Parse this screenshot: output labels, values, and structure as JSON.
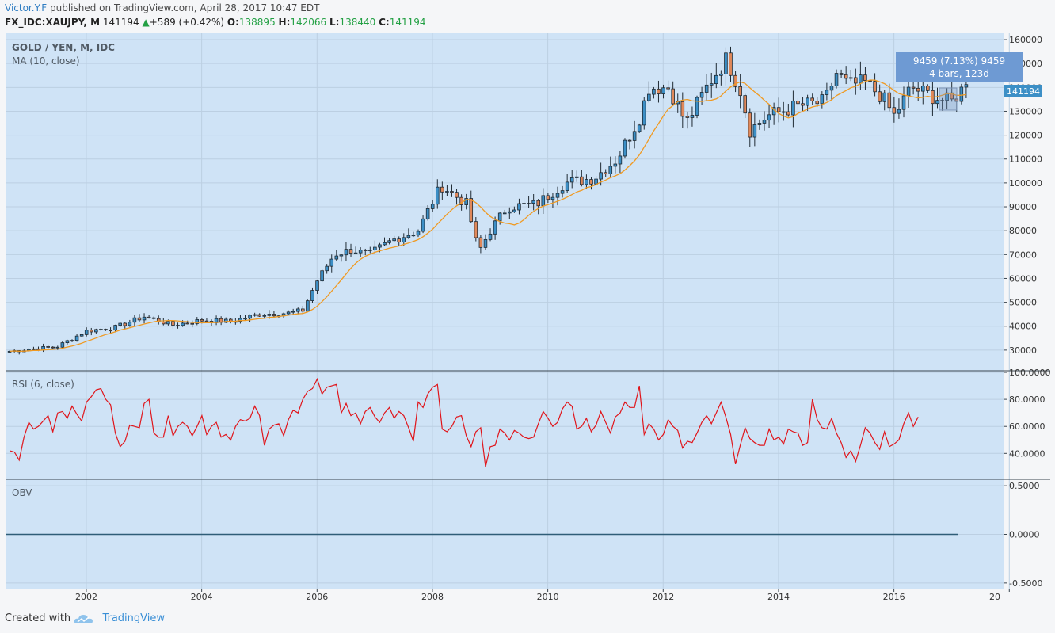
{
  "header": {
    "author": "Victor.Y.F",
    "published_text": " published on TradingView.com, April 28, 2017 10:47 EDT"
  },
  "quote": {
    "symbol": "FX_IDC:XAUJPY, M",
    "last": "141194",
    "change": "+589 (+0.42%)",
    "o_label": "O:",
    "open": "138895",
    "h_label": "H:",
    "high": "142066",
    "l_label": "L:",
    "low": "138440",
    "c_label": "C:",
    "close": "141194"
  },
  "panes": {
    "main_title": "GOLD / YEN, M, IDC",
    "ma_label": "MA (10, close)",
    "rsi_label": "RSI (6, close)",
    "obv_label": "OBV"
  },
  "tooltip": {
    "line1": "9459 (7.13%) 9459",
    "line2": "4 bars, 123d"
  },
  "last_price_tag": "141194",
  "footer": {
    "created_with": "Created with",
    "brand": "TradingView"
  },
  "colors": {
    "up": "#3c8fc6",
    "down": "#e0885a",
    "ma": "#f09a22",
    "rsi": "#e0151b",
    "obv": "#2f5d77",
    "pane_bg": "#cfe3f6"
  },
  "chart_data": [
    {
      "type": "candlestick",
      "title": "GOLD / YEN, M, IDC",
      "ylim": [
        22000,
        162000
      ],
      "y_ticks": [
        "30000",
        "40000",
        "50000",
        "60000",
        "70000",
        "80000",
        "90000",
        "100000",
        "110000",
        "120000",
        "130000",
        "140000",
        "150000",
        "160000"
      ],
      "x_ticks": [
        "2002",
        "2004",
        "2006",
        "2008",
        "2010",
        "2012",
        "2014",
        "2016",
        "20"
      ],
      "x_range_years": [
        2000.6,
        2017.9
      ],
      "first_bar_year": 2000.67,
      "close_keypoints": [
        [
          2000.67,
          29500
        ],
        [
          2001.5,
          31500
        ],
        [
          2002.0,
          38000
        ],
        [
          2002.5,
          39500
        ],
        [
          2003.0,
          44000
        ],
        [
          2003.5,
          40500
        ],
        [
          2004.0,
          42500
        ],
        [
          2004.5,
          42000
        ],
        [
          2005.0,
          45000
        ],
        [
          2005.5,
          45500
        ],
        [
          2005.75,
          46500
        ],
        [
          2006.0,
          59000
        ],
        [
          2006.3,
          70000
        ],
        [
          2006.6,
          72000
        ],
        [
          2006.9,
          70000
        ],
        [
          2007.3,
          76000
        ],
        [
          2007.75,
          80000
        ],
        [
          2008.0,
          92000
        ],
        [
          2008.15,
          99000
        ],
        [
          2008.6,
          91000
        ],
        [
          2008.8,
          71000
        ],
        [
          2009.0,
          80000
        ],
        [
          2009.3,
          90000
        ],
        [
          2009.8,
          91000
        ],
        [
          2010.3,
          100000
        ],
        [
          2010.8,
          102000
        ],
        [
          2011.2,
          110000
        ],
        [
          2011.6,
          128000
        ],
        [
          2011.75,
          140000
        ],
        [
          2012.1,
          140000
        ],
        [
          2012.4,
          125000
        ],
        [
          2012.8,
          142000
        ],
        [
          2013.1,
          152000
        ],
        [
          2013.35,
          138000
        ],
        [
          2013.5,
          122000
        ],
        [
          2013.8,
          128000
        ],
        [
          2014.3,
          132000
        ],
        [
          2014.8,
          134000
        ],
        [
          2015.0,
          146000
        ],
        [
          2015.2,
          141000
        ],
        [
          2015.5,
          142000
        ],
        [
          2015.8,
          136000
        ],
        [
          2016.0,
          128000
        ],
        [
          2016.3,
          140000
        ],
        [
          2016.6,
          137000
        ],
        [
          2016.8,
          135000
        ],
        [
          2017.0,
          134000
        ],
        [
          2017.25,
          141194
        ]
      ]
    },
    {
      "type": "line",
      "title": "MA (10, close)",
      "derived_from": "10-period moving average of the candlestick closes"
    },
    {
      "type": "line",
      "title": "RSI (6, close)",
      "ylim": [
        22,
        100
      ],
      "y_ticks": [
        "40.0000",
        "60.0000",
        "80.0000",
        "100.0000"
      ],
      "values": [
        42,
        41,
        35,
        52,
        63,
        58,
        60,
        64,
        68,
        56,
        70,
        71,
        66,
        75,
        69,
        64,
        78,
        82,
        87,
        88,
        80,
        76,
        55,
        45,
        49,
        61,
        60,
        59,
        77,
        80,
        55,
        52,
        52,
        68,
        53,
        60,
        63,
        60,
        53,
        60,
        68,
        54,
        60,
        63,
        52,
        54,
        50,
        60,
        65,
        64,
        66,
        75,
        68,
        46,
        58,
        61,
        62,
        53,
        65,
        72,
        70,
        80,
        86,
        88,
        95,
        84,
        89,
        90,
        91,
        70,
        77,
        68,
        70,
        62,
        71,
        74,
        67,
        63,
        70,
        74,
        66,
        71,
        68,
        59,
        49,
        78,
        74,
        84,
        89,
        91,
        58,
        56,
        60,
        67,
        68,
        53,
        45,
        56,
        59,
        30,
        45,
        46,
        58,
        55,
        50,
        57,
        55,
        52,
        51,
        52,
        62,
        71,
        66,
        60,
        63,
        73,
        78,
        75,
        58,
        60,
        66,
        56,
        61,
        71,
        63,
        55,
        67,
        70,
        78,
        74,
        74,
        90,
        54,
        62,
        58,
        50,
        54,
        65,
        60,
        57,
        44,
        49,
        48,
        55,
        63,
        68,
        62,
        70,
        78,
        67,
        54,
        32,
        46,
        59,
        51,
        48,
        46,
        46,
        58,
        50,
        52,
        47,
        58,
        56,
        55,
        46,
        48,
        80,
        65,
        59,
        58,
        66,
        55,
        48,
        37,
        42,
        34,
        46,
        59,
        55,
        48,
        43,
        56,
        45,
        47,
        50,
        62,
        70,
        60,
        67
      ]
    },
    {
      "type": "line",
      "title": "OBV",
      "ylim": [
        -0.55,
        0.55
      ],
      "y_ticks": [
        "0.5000",
        "0.0000",
        "-0.5000"
      ],
      "values_constant": 0.0
    }
  ]
}
